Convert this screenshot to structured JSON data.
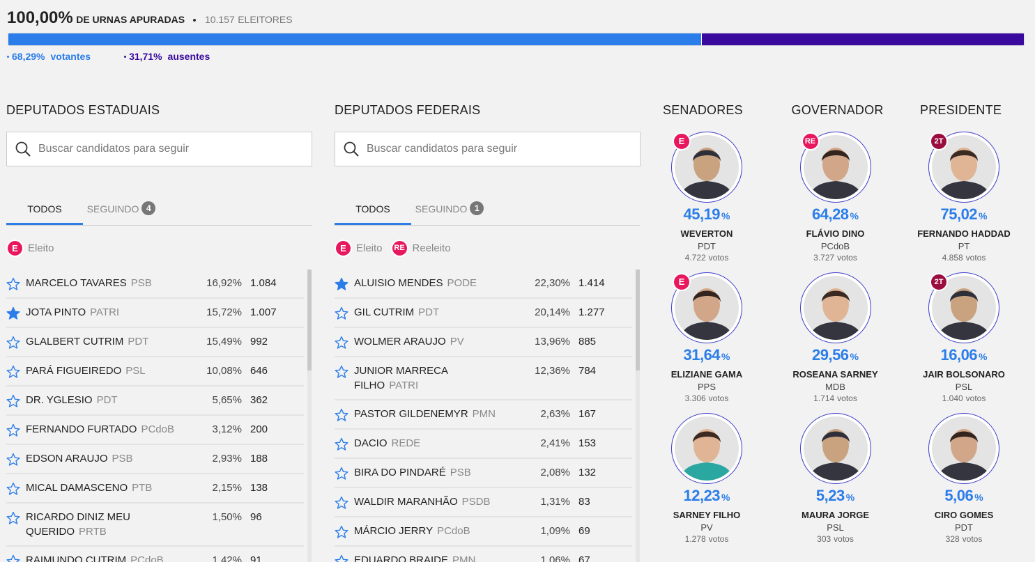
{
  "header": {
    "percent": "100,00%",
    "label": "DE URNAS APURADAS",
    "voters": "10.157",
    "voters_label": "ELEITORES"
  },
  "turnout": {
    "segments": [
      {
        "value": 68.29,
        "label": "68,29%",
        "name": "votantes",
        "color": "#2b7de9"
      },
      {
        "value": 31.71,
        "label": "31,71%",
        "name": "ausentes",
        "color": "#3a0a9e"
      }
    ]
  },
  "percent_sign": "%",
  "votes_label": "votos",
  "lists": [
    {
      "title": "DEPUTADOS ESTADUAIS",
      "search_placeholder": "Buscar candidatos para seguir",
      "tabs": [
        {
          "label": "TODOS"
        },
        {
          "label": "SEGUINDO",
          "count": 4
        }
      ],
      "legend": [
        {
          "badge": "E",
          "label": "Eleito",
          "color": "#e8185f"
        }
      ],
      "rows": [
        {
          "name": "MARCELO TAVARES",
          "party": "PSB",
          "percent": "16,92%",
          "votes": "1.084",
          "followed": false
        },
        {
          "name": "JOTA PINTO",
          "party": "PATRI",
          "percent": "15,72%",
          "votes": "1.007",
          "followed": true
        },
        {
          "name": "GLALBERT CUTRIM",
          "party": "PDT",
          "percent": "15,49%",
          "votes": "992",
          "followed": false
        },
        {
          "name": "PARÁ FIGUEIREDO",
          "party": "PSL",
          "percent": "10,08%",
          "votes": "646",
          "followed": false
        },
        {
          "name": "DR. YGLESIO",
          "party": "PDT",
          "percent": "5,65%",
          "votes": "362",
          "followed": false
        },
        {
          "name": "FERNANDO FURTADO",
          "party": "PCdoB",
          "percent": "3,12%",
          "votes": "200",
          "followed": false
        },
        {
          "name": "EDSON ARAUJO",
          "party": "PSB",
          "percent": "2,93%",
          "votes": "188",
          "followed": false
        },
        {
          "name": "MICAL DAMASCENO",
          "party": "PTB",
          "percent": "2,15%",
          "votes": "138",
          "followed": false
        },
        {
          "name": "RICARDO DINIZ MEU QUERIDO",
          "party": "PRTB",
          "percent": "1,50%",
          "votes": "96",
          "followed": false
        },
        {
          "name": "RAIMUNDO CUTRIM",
          "party": "PCdoB",
          "percent": "1,42%",
          "votes": "91",
          "followed": false
        }
      ]
    },
    {
      "title": "DEPUTADOS FEDERAIS",
      "search_placeholder": "Buscar candidatos para seguir",
      "tabs": [
        {
          "label": "TODOS"
        },
        {
          "label": "SEGUINDO",
          "count": 1
        }
      ],
      "legend": [
        {
          "badge": "E",
          "label": "Eleito",
          "color": "#e8185f"
        },
        {
          "badge": "RE",
          "label": "Reeleito",
          "color": "#e8185f"
        }
      ],
      "rows": [
        {
          "name": "ALUISIO MENDES",
          "party": "PODE",
          "percent": "22,30%",
          "votes": "1.414",
          "followed": true
        },
        {
          "name": "GIL CUTRIM",
          "party": "PDT",
          "percent": "20,14%",
          "votes": "1.277",
          "followed": false
        },
        {
          "name": "WOLMER ARAUJO",
          "party": "PV",
          "percent": "13,96%",
          "votes": "885",
          "followed": false
        },
        {
          "name": "JUNIOR MARRECA FILHO",
          "party": "PATRI",
          "percent": "12,36%",
          "votes": "784",
          "followed": false
        },
        {
          "name": "PASTOR GILDENEMYR",
          "party": "PMN",
          "percent": "2,63%",
          "votes": "167",
          "followed": false
        },
        {
          "name": "DACIO",
          "party": "REDE",
          "percent": "2,41%",
          "votes": "153",
          "followed": false
        },
        {
          "name": "BIRA DO PINDARÉ",
          "party": "PSB",
          "percent": "2,08%",
          "votes": "132",
          "followed": false
        },
        {
          "name": "WALDIR MARANHÃO",
          "party": "PSDB",
          "percent": "1,31%",
          "votes": "83",
          "followed": false
        },
        {
          "name": "MÁRCIO JERRY",
          "party": "PCdoB",
          "percent": "1,09%",
          "votes": "69",
          "followed": false
        },
        {
          "name": "EDUARDO BRAIDE",
          "party": "PMN",
          "percent": "1,06%",
          "votes": "67",
          "followed": false
        }
      ]
    }
  ],
  "races": [
    {
      "title": "SENADORES",
      "candidates": [
        {
          "name": "WEVERTON",
          "party": "PDT",
          "percent": "45,19",
          "votes": "4.722",
          "badge": {
            "label": "E",
            "color": "#e8185f"
          }
        },
        {
          "name": "ELIZIANE GAMA",
          "party": "PPS",
          "percent": "31,64",
          "votes": "3.306",
          "badge": {
            "label": "E",
            "color": "#e8185f"
          }
        },
        {
          "name": "SARNEY FILHO",
          "party": "PV",
          "percent": "12,23",
          "votes": "1.278"
        }
      ]
    },
    {
      "title": "GOVERNADOR",
      "candidates": [
        {
          "name": "FLÁVIO DINO",
          "party": "PCdoB",
          "percent": "64,28",
          "votes": "3.727",
          "badge": {
            "label": "RE",
            "color": "#e8185f"
          }
        },
        {
          "name": "ROSEANA SARNEY",
          "party": "MDB",
          "percent": "29,56",
          "votes": "1.714"
        },
        {
          "name": "MAURA JORGE",
          "party": "PSL",
          "percent": "5,23",
          "votes": "303"
        }
      ]
    },
    {
      "title": "PRESIDENTE",
      "candidates": [
        {
          "name": "FERNANDO HADDAD",
          "party": "PT",
          "percent": "75,02",
          "votes": "4.858",
          "badge": {
            "label": "2T",
            "color": "#9b0d3f"
          }
        },
        {
          "name": "JAIR BOLSONARO",
          "party": "PSL",
          "percent": "16,06",
          "votes": "1.040",
          "badge": {
            "label": "2T",
            "color": "#9b0d3f"
          }
        },
        {
          "name": "CIRO GOMES",
          "party": "PDT",
          "percent": "5,06",
          "votes": "328"
        }
      ]
    }
  ]
}
